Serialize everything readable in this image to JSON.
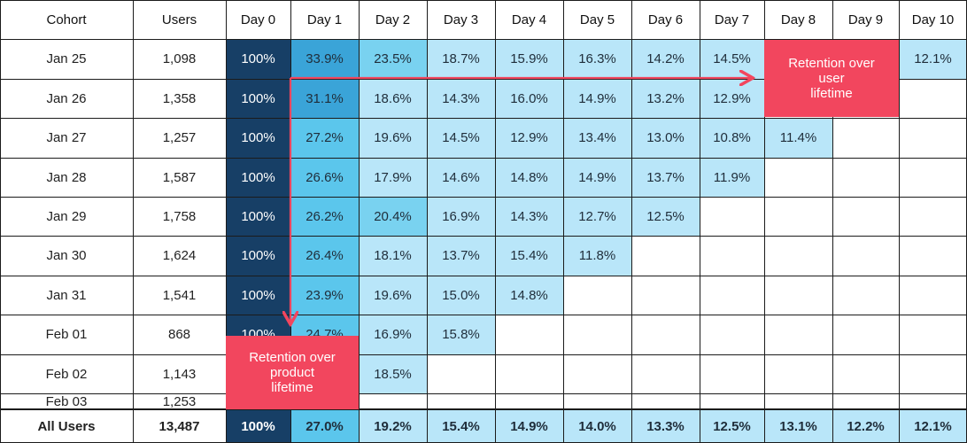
{
  "chart_data": {
    "type": "table",
    "columns": [
      "Cohort",
      "Users",
      "Day 0",
      "Day 1",
      "Day 2",
      "Day 3",
      "Day 4",
      "Day 5",
      "Day 6",
      "Day 7",
      "Day 8",
      "Day 9",
      "Day 10"
    ],
    "rows": [
      {
        "cohort": "Jan 25",
        "users": "1,098",
        "retention": [
          "100%",
          "33.9%",
          "23.5%",
          "18.7%",
          "15.9%",
          "16.3%",
          "14.2%",
          "14.5%",
          "",
          "",
          "12.1%"
        ]
      },
      {
        "cohort": "Jan 26",
        "users": "1,358",
        "retention": [
          "100%",
          "31.1%",
          "18.6%",
          "14.3%",
          "16.0%",
          "14.9%",
          "13.2%",
          "12.9%"
        ]
      },
      {
        "cohort": "Jan 27",
        "users": "1,257",
        "retention": [
          "100%",
          "27.2%",
          "19.6%",
          "14.5%",
          "12.9%",
          "13.4%",
          "13.0%",
          "10.8%",
          "11.4%"
        ]
      },
      {
        "cohort": "Jan 28",
        "users": "1,587",
        "retention": [
          "100%",
          "26.6%",
          "17.9%",
          "14.6%",
          "14.8%",
          "14.9%",
          "13.7%",
          "11.9%"
        ]
      },
      {
        "cohort": "Jan 29",
        "users": "1,758",
        "retention": [
          "100%",
          "26.2%",
          "20.4%",
          "16.9%",
          "14.3%",
          "12.7%",
          "12.5%"
        ]
      },
      {
        "cohort": "Jan 30",
        "users": "1,624",
        "retention": [
          "100%",
          "26.4%",
          "18.1%",
          "13.7%",
          "15.4%",
          "11.8%"
        ]
      },
      {
        "cohort": "Jan 31",
        "users": "1,541",
        "retention": [
          "100%",
          "23.9%",
          "19.6%",
          "15.0%",
          "14.8%"
        ]
      },
      {
        "cohort": "Feb 01",
        "users": "868",
        "retention": [
          "100%",
          "24.7%",
          "16.9%",
          "15.8%"
        ]
      },
      {
        "cohort": "Feb 02",
        "users": "1,143",
        "retention": [
          "",
          "",
          "18.5%"
        ]
      },
      {
        "cohort": "Feb 03",
        "users": "1,253",
        "retention": []
      }
    ],
    "total": {
      "cohort": "All Users",
      "users": "13,487",
      "retention": [
        "100%",
        "27.0%",
        "19.2%",
        "15.4%",
        "14.9%",
        "14.0%",
        "13.3%",
        "12.5%",
        "13.1%",
        "12.2%",
        "12.1%"
      ]
    },
    "annotations": [
      {
        "text": "Retention over user lifetime",
        "lines": [
          "Retention over",
          "user",
          "lifetime"
        ]
      },
      {
        "text": "Retention over product lifetime",
        "lines": [
          "Retention over",
          "product",
          "lifetime"
        ]
      }
    ]
  },
  "colors": {
    "day0": "#173f66",
    "day1_dark": "#3aa4d8",
    "day1": "#5bc6ec",
    "day2_mid": "#79d2f0",
    "light": "#b9e6f9",
    "callout": "#f2465e",
    "grid": "#1b1b1b"
  }
}
